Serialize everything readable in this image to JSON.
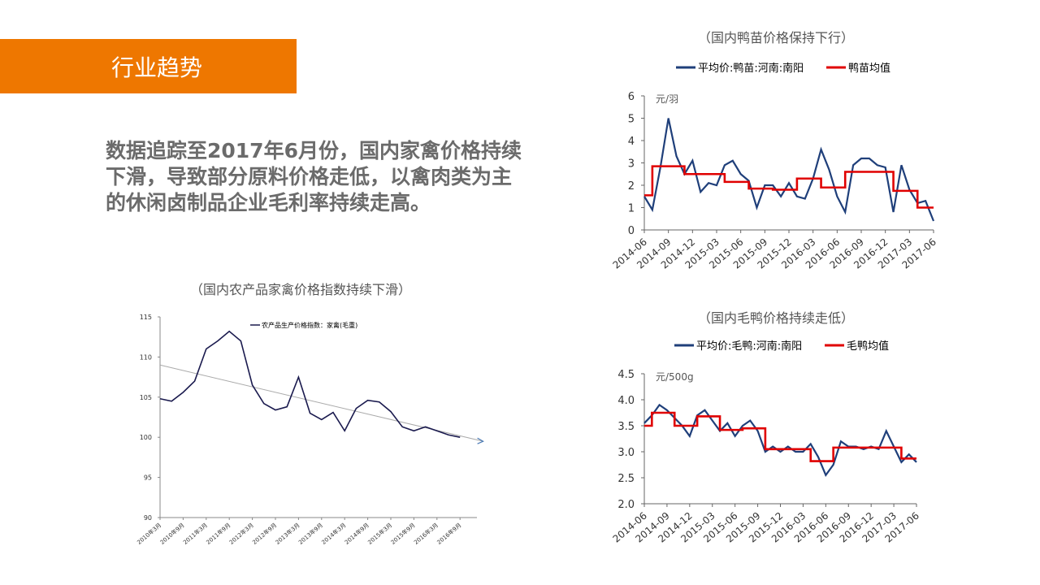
{
  "header": {
    "title": "行业趋势",
    "accent_color": "#EE7700"
  },
  "summary": {
    "lines": [
      "数据追踪至2017年6月份，国内家禽价格持续",
      "下滑，导致部分原料价格走低，以禽肉类为主",
      "的休闲卤制品企业毛利率持续走高。"
    ]
  },
  "captions": {
    "poultry_index": "（国内农产品家禽价格指数持续下滑）",
    "duck_seedling": "（国内鸭苗价格保持下行）",
    "live_duck": "（国内毛鸭价格持续走低）"
  },
  "chart_data": [
    {
      "id": "poultry_index",
      "type": "line",
      "title": "",
      "xlabel": "",
      "ylabel": "",
      "ylim": [
        90,
        115
      ],
      "yticks": [
        90,
        95,
        100,
        105,
        110,
        115
      ],
      "xtick_labels": [
        "2010年3月",
        "2010年9月",
        "2011年3月",
        "2011年9月",
        "2012年3月",
        "2012年9月",
        "2013年3月",
        "2013年9月",
        "2014年3月",
        "2014年9月",
        "2015年3月",
        "2015年9月",
        "2016年3月",
        "2016年9月"
      ],
      "legend": "top-center",
      "grid": false,
      "series": [
        {
          "name": "农产品生产价格指数：家禽(毛重)",
          "color": "#1a1a4e",
          "values": [
            104.8,
            104.5,
            105.6,
            107.0,
            111.0,
            112.0,
            113.2,
            112.0,
            106.5,
            104.2,
            103.4,
            103.8,
            107.5,
            103.0,
            102.2,
            103.1,
            100.8,
            103.6,
            104.6,
            104.4,
            103.2,
            101.3,
            100.8,
            101.3,
            100.8,
            100.3,
            100.0
          ]
        }
      ],
      "trendline": {
        "start": 109.0,
        "end": 99.5,
        "color": "#4a7ab5"
      }
    },
    {
      "id": "duck_seedling",
      "type": "line",
      "unit": "元/羽",
      "ylim": [
        0,
        6
      ],
      "yticks": [
        0,
        1,
        2,
        3,
        4,
        5,
        6
      ],
      "xtick_labels": [
        "2014-06",
        "2014-09",
        "2014-12",
        "2015-03",
        "2015-06",
        "2015-09",
        "2015-12",
        "2016-03",
        "2016-06",
        "2016-09",
        "2016-12",
        "2017-03",
        "2017-06"
      ],
      "legend": "top",
      "grid": false,
      "series": [
        {
          "name": "平均价:鸭苗:河南:南阳",
          "color": "#1F3F7A",
          "x": [
            "2014-06",
            "2014-07",
            "2014-08",
            "2014-09",
            "2014-10",
            "2014-11",
            "2014-12",
            "2015-01",
            "2015-02",
            "2015-03",
            "2015-04",
            "2015-05",
            "2015-06",
            "2015-07",
            "2015-08",
            "2015-09",
            "2015-10",
            "2015-11",
            "2015-12",
            "2016-01",
            "2016-02",
            "2016-03",
            "2016-04",
            "2016-05",
            "2016-06",
            "2016-07",
            "2016-08",
            "2016-09",
            "2016-10",
            "2016-11",
            "2016-12",
            "2017-01",
            "2017-02",
            "2017-03",
            "2017-04",
            "2017-05",
            "2017-06"
          ],
          "values": [
            1.5,
            0.9,
            2.8,
            5.0,
            3.3,
            2.5,
            3.1,
            1.7,
            2.1,
            2.0,
            2.9,
            3.1,
            2.5,
            2.2,
            1.0,
            2.0,
            2.0,
            1.5,
            2.1,
            1.5,
            1.4,
            2.3,
            3.6,
            2.7,
            1.5,
            0.8,
            2.9,
            3.2,
            3.2,
            2.9,
            2.8,
            0.8,
            2.9,
            1.8,
            1.2,
            1.3,
            0.4
          ]
        },
        {
          "name": "鸭苗均值",
          "color": "#E00000",
          "type": "step",
          "steps": [
            [
              "2014-06",
              "2014-07",
              1.55
            ],
            [
              "2014-07",
              "2014-11",
              2.85
            ],
            [
              "2014-11",
              "2015-04",
              2.5
            ],
            [
              "2015-04",
              "2015-07",
              2.15
            ],
            [
              "2015-07",
              "2015-10",
              1.85
            ],
            [
              "2015-10",
              "2016-01",
              1.8
            ],
            [
              "2016-01",
              "2016-04",
              2.3
            ],
            [
              "2016-04",
              "2016-07",
              1.9
            ],
            [
              "2016-07",
              "2017-01",
              2.6
            ],
            [
              "2017-01",
              "2017-04",
              1.75
            ],
            [
              "2017-04",
              "2017-06",
              1.0
            ]
          ]
        }
      ]
    },
    {
      "id": "live_duck",
      "type": "line",
      "unit": "元/500g",
      "ylim": [
        2.0,
        4.5
      ],
      "yticks": [
        "2.0",
        "2.5",
        "3.0",
        "3.5",
        "4.0",
        "4.5"
      ],
      "xtick_labels": [
        "2014-06",
        "2014-09",
        "2014-12",
        "2015-03",
        "2015-06",
        "2015-09",
        "2015-12",
        "2016-03",
        "2016-06",
        "2016-09",
        "2016-12",
        "2017-03",
        "2017-06"
      ],
      "legend": "top",
      "grid": false,
      "series": [
        {
          "name": "平均价:毛鸭:河南:南阳",
          "color": "#1F3F7A",
          "x": [
            "2014-06",
            "2014-07",
            "2014-08",
            "2014-09",
            "2014-10",
            "2014-11",
            "2014-12",
            "2015-01",
            "2015-02",
            "2015-03",
            "2015-04",
            "2015-05",
            "2015-06",
            "2015-07",
            "2015-08",
            "2015-09",
            "2015-10",
            "2015-11",
            "2015-12",
            "2016-01",
            "2016-02",
            "2016-03",
            "2016-04",
            "2016-05",
            "2016-06",
            "2016-07",
            "2016-08",
            "2016-09",
            "2016-10",
            "2016-11",
            "2016-12",
            "2017-01",
            "2017-02",
            "2017-03",
            "2017-04",
            "2017-05",
            "2017-06"
          ],
          "values": [
            3.55,
            3.7,
            3.9,
            3.8,
            3.65,
            3.5,
            3.3,
            3.7,
            3.8,
            3.6,
            3.4,
            3.55,
            3.3,
            3.5,
            3.6,
            3.4,
            3.0,
            3.1,
            3.0,
            3.1,
            3.0,
            3.0,
            3.15,
            2.9,
            2.55,
            2.75,
            3.2,
            3.1,
            3.1,
            3.05,
            3.1,
            3.05,
            3.4,
            3.1,
            2.8,
            2.95,
            2.8
          ]
        },
        {
          "name": "毛鸭均值",
          "color": "#E00000",
          "type": "step",
          "steps": [
            [
              "2014-06",
              "2014-07",
              3.5
            ],
            [
              "2014-07",
              "2014-10",
              3.75
            ],
            [
              "2014-10",
              "2015-01",
              3.5
            ],
            [
              "2015-01",
              "2015-04",
              3.68
            ],
            [
              "2015-04",
              "2015-07",
              3.42
            ],
            [
              "2015-07",
              "2015-10",
              3.45
            ],
            [
              "2015-10",
              "2016-04",
              3.05
            ],
            [
              "2016-04",
              "2016-07",
              2.82
            ],
            [
              "2016-07",
              "2017-04",
              3.08
            ],
            [
              "2017-04",
              "2017-06",
              2.87
            ]
          ]
        }
      ]
    }
  ]
}
